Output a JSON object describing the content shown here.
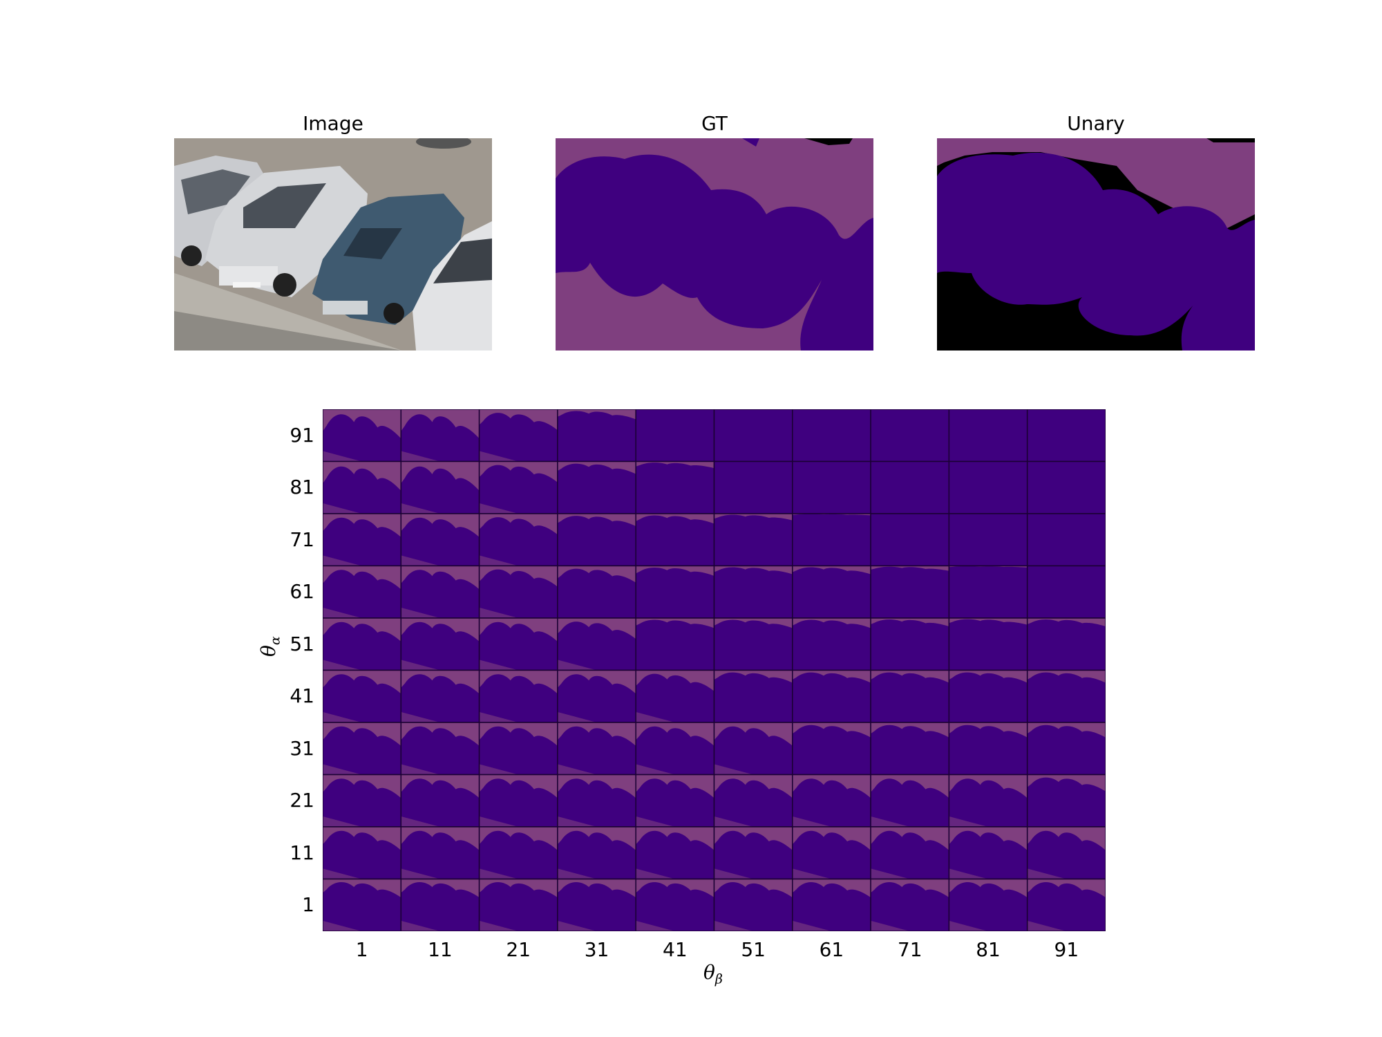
{
  "panels": [
    {
      "key": "image",
      "title": "Image"
    },
    {
      "key": "gt",
      "title": "GT"
    },
    {
      "key": "unary",
      "title": "Unary"
    }
  ],
  "colors": {
    "background_class": "#7f3f7f",
    "foreground_class": "#3f007f",
    "unlabelled": "#000000",
    "grid_lines": "#1a0033"
  },
  "chart_data": {
    "type": "heatmap",
    "description_kind": "grid of segmentation thumbnails",
    "xlabel_symbol": "θ",
    "xlabel_subscript": "β",
    "ylabel_symbol": "θ",
    "ylabel_subscript": "α",
    "x_ticks": [
      "1",
      "11",
      "21",
      "31",
      "41",
      "51",
      "61",
      "71",
      "81",
      "91"
    ],
    "y_ticks": [
      "91",
      "81",
      "71",
      "61",
      "51",
      "41",
      "31",
      "21",
      "11",
      "1"
    ],
    "cell_background_fraction": [
      [
        0.35,
        0.35,
        0.25,
        0.12,
        0.0,
        0.0,
        0.0,
        0.0,
        0.0,
        0.0
      ],
      [
        0.35,
        0.35,
        0.25,
        0.15,
        0.08,
        0.0,
        0.0,
        0.0,
        0.0,
        0.0
      ],
      [
        0.28,
        0.28,
        0.25,
        0.15,
        0.12,
        0.08,
        0.02,
        0.0,
        0.0,
        0.0
      ],
      [
        0.28,
        0.28,
        0.25,
        0.2,
        0.12,
        0.1,
        0.1,
        0.06,
        0.02,
        0.0
      ],
      [
        0.28,
        0.28,
        0.28,
        0.25,
        0.12,
        0.12,
        0.12,
        0.1,
        0.08,
        0.1
      ],
      [
        0.28,
        0.28,
        0.28,
        0.28,
        0.25,
        0.15,
        0.15,
        0.15,
        0.15,
        0.15
      ],
      [
        0.28,
        0.28,
        0.28,
        0.28,
        0.28,
        0.28,
        0.18,
        0.18,
        0.18,
        0.18
      ],
      [
        0.28,
        0.28,
        0.28,
        0.28,
        0.28,
        0.28,
        0.28,
        0.28,
        0.28,
        0.2
      ],
      [
        0.28,
        0.28,
        0.28,
        0.28,
        0.28,
        0.28,
        0.28,
        0.28,
        0.28,
        0.28
      ],
      [
        0.22,
        0.22,
        0.22,
        0.22,
        0.22,
        0.22,
        0.22,
        0.22,
        0.22,
        0.22
      ]
    ]
  }
}
